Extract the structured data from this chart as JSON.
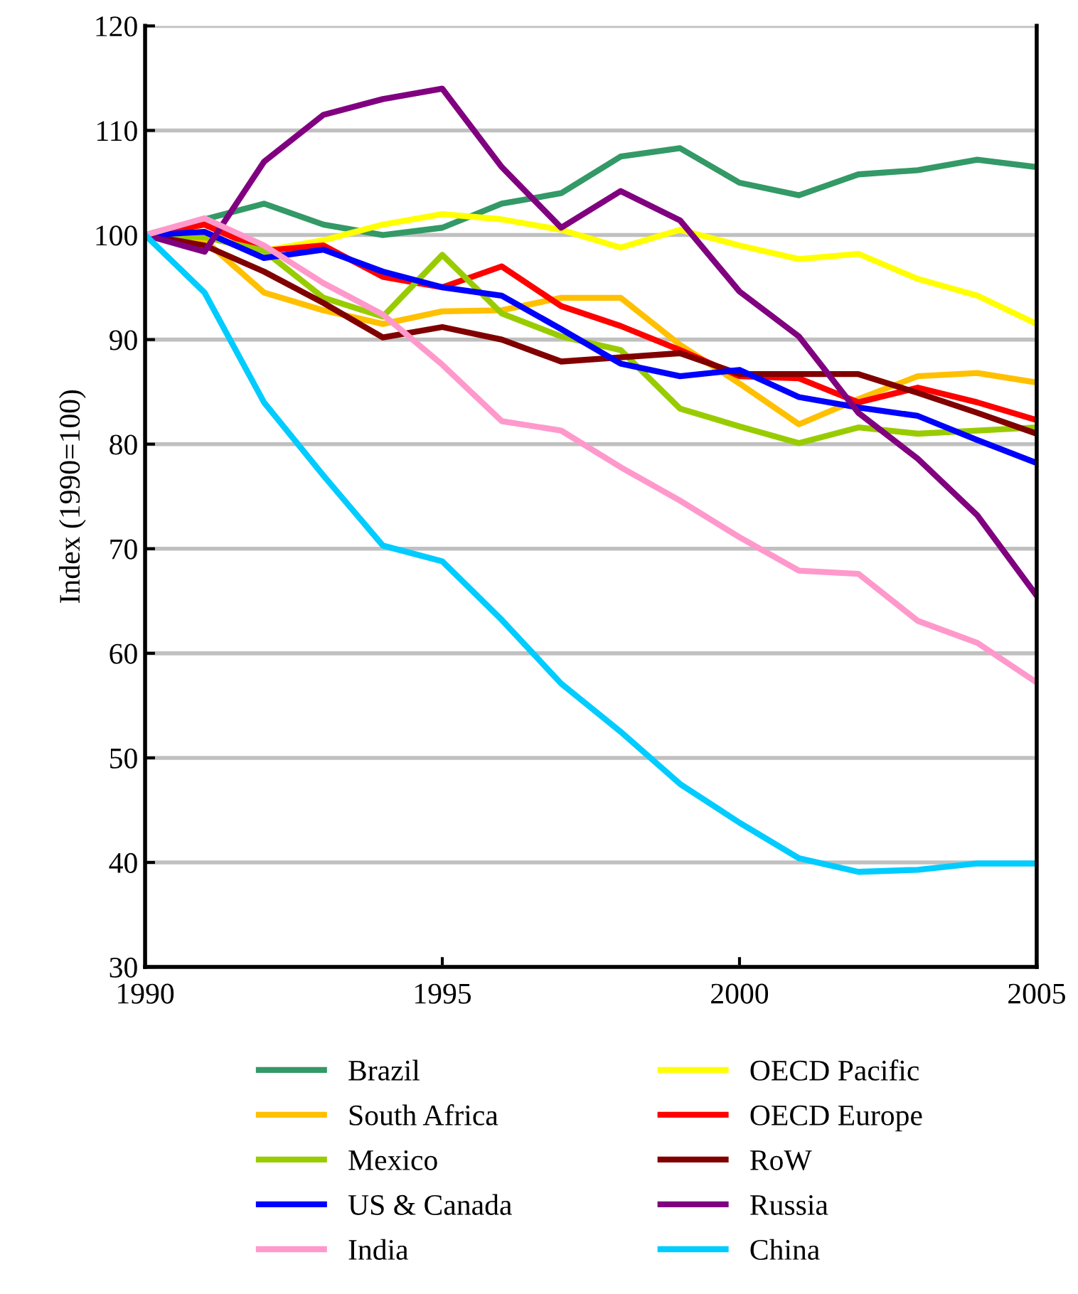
{
  "chart_data": {
    "type": "line",
    "ylabel": "Index (1990=100)",
    "x": [
      1990,
      1991,
      1992,
      1993,
      1994,
      1995,
      1996,
      1997,
      1998,
      1999,
      2000,
      2001,
      2002,
      2003,
      2004,
      2005
    ],
    "xlim": [
      1990,
      2005
    ],
    "xticks": [
      1990,
      1995,
      2000,
      2005
    ],
    "ylim": [
      30,
      120
    ],
    "yticks": [
      30,
      40,
      50,
      60,
      70,
      80,
      90,
      100,
      110,
      120
    ],
    "grid": "y",
    "legend": "bottom",
    "marker": "none",
    "line_style": "solid",
    "series": [
      {
        "name": "Brazil",
        "color": "#339966",
        "values": [
          100,
          101.5,
          103,
          101,
          100,
          100.7,
          103,
          104,
          107.5,
          108.3,
          105,
          103.8,
          105.8,
          106.2,
          107.2,
          106.5
        ]
      },
      {
        "name": "OECD Pacific",
        "color": "#ffff00",
        "values": [
          100,
          101,
          98.5,
          99.5,
          101,
          102,
          101.5,
          100.5,
          98.8,
          100.5,
          99,
          97.7,
          98.2,
          95.8,
          94.2,
          91.5
        ]
      },
      {
        "name": "South Africa",
        "color": "#ffc000",
        "values": [
          100,
          99.5,
          94.5,
          92.8,
          91.5,
          92.7,
          92.8,
          94,
          94,
          89.5,
          85.8,
          81.9,
          84.3,
          86.5,
          86.8,
          85.9
        ]
      },
      {
        "name": "OECD Europe",
        "color": "#ff0000",
        "values": [
          100,
          101,
          98.5,
          99,
          96,
          95,
          97,
          93.2,
          91.3,
          89,
          86.5,
          86.3,
          84,
          85.4,
          84,
          82.3
        ]
      },
      {
        "name": "Mexico",
        "color": "#99cc00",
        "values": [
          100,
          99.8,
          98.5,
          94,
          92.2,
          98.1,
          92.5,
          90.3,
          89,
          83.4,
          81.7,
          80.1,
          81.6,
          81,
          81.3,
          81.6
        ]
      },
      {
        "name": "RoW",
        "color": "#800000",
        "values": [
          100,
          99,
          96.5,
          93.5,
          90.2,
          91.2,
          90,
          87.9,
          88.3,
          88.7,
          86.7,
          86.7,
          86.7,
          84.9,
          83,
          81
        ]
      },
      {
        "name": "US & Canada",
        "color": "#0000ff",
        "values": [
          100,
          100.3,
          97.8,
          98.6,
          96.5,
          95,
          94.2,
          91,
          87.7,
          86.5,
          87.1,
          84.5,
          83.5,
          82.7,
          80.4,
          78.2
        ]
      },
      {
        "name": "Russia",
        "color": "#800080",
        "values": [
          100,
          98.4,
          107,
          111.5,
          113,
          114,
          106.5,
          100.7,
          104.2,
          101.4,
          94.6,
          90.3,
          83,
          78.6,
          73.2,
          65.5
        ]
      },
      {
        "name": "India",
        "color": "#ff99cc",
        "values": [
          100,
          101.6,
          99,
          95.4,
          92.4,
          87.6,
          82.2,
          81.3,
          77.8,
          74.6,
          71.1,
          67.9,
          67.6,
          63.1,
          61,
          57.2
        ]
      },
      {
        "name": "China",
        "color": "#00ccff",
        "values": [
          100,
          94.5,
          84,
          77,
          70.3,
          68.8,
          63.2,
          57.1,
          52.5,
          47.5,
          43.8,
          40.4,
          39.1,
          39.3,
          39.9,
          39.9
        ]
      }
    ]
  }
}
